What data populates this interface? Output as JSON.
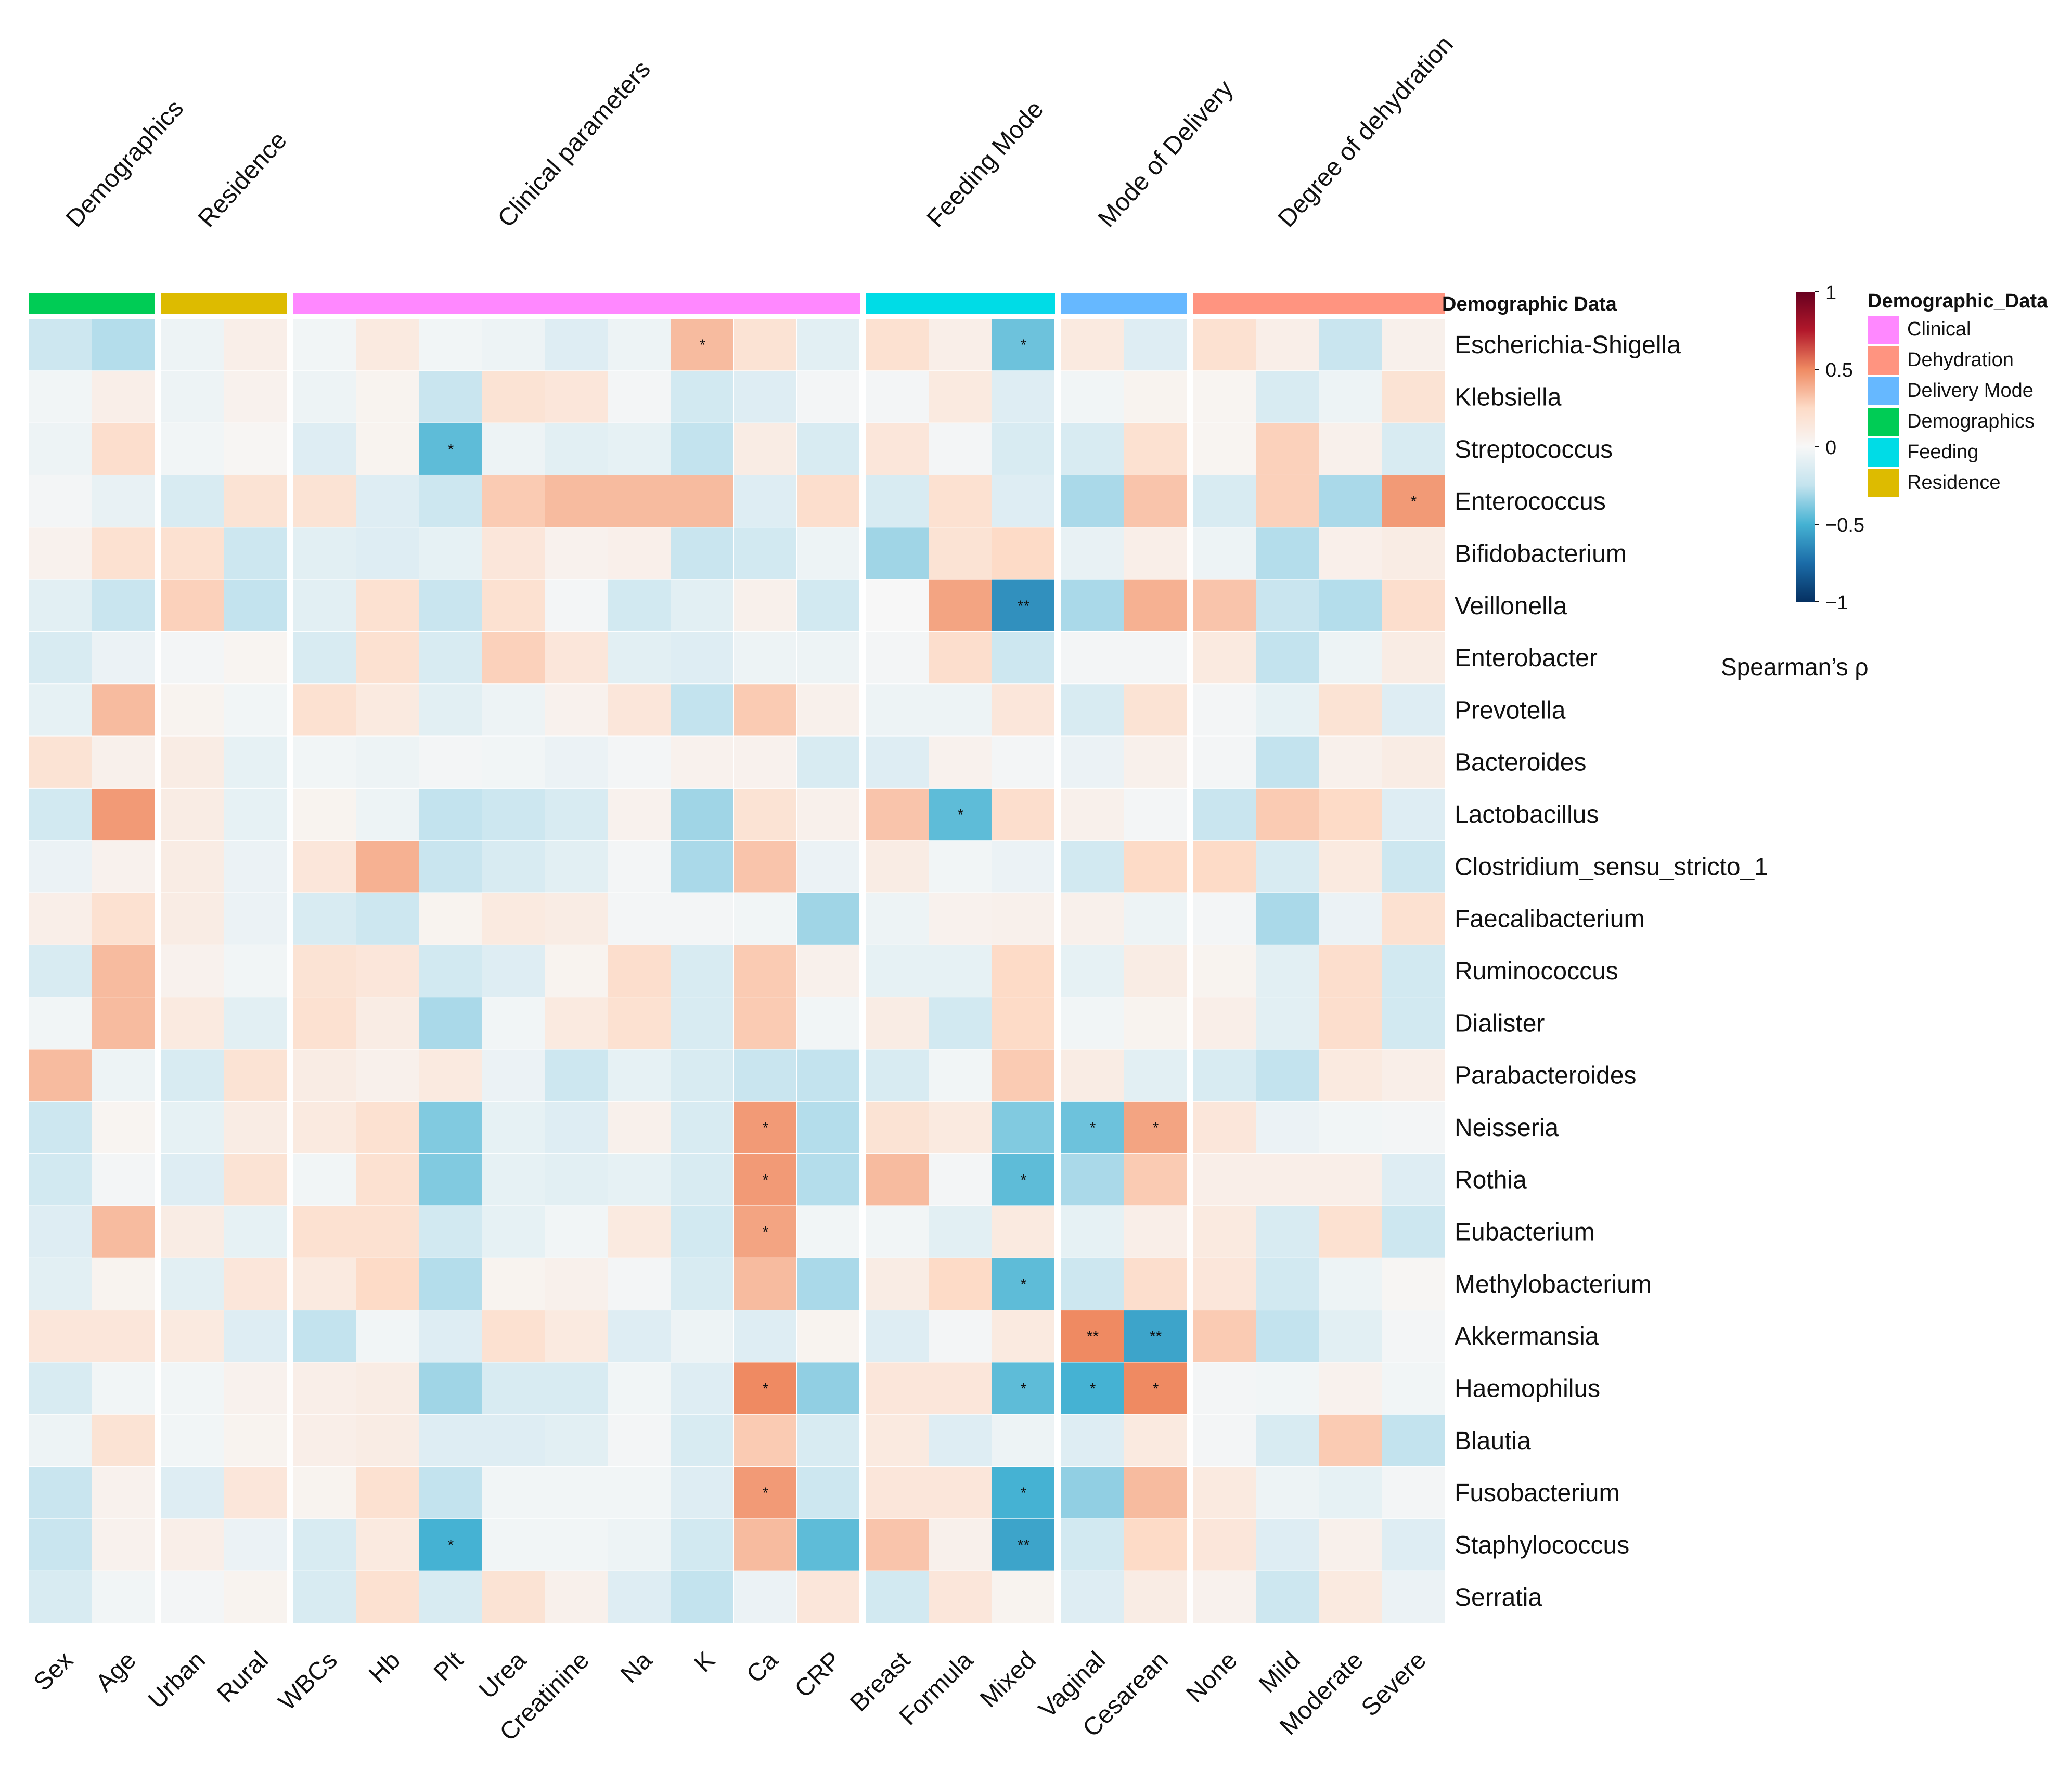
{
  "chart_data": {
    "type": "heatmap",
    "title": "",
    "groups": [
      {
        "name": "Demographics",
        "key": "Demographics",
        "columns": [
          "Sex",
          "Age"
        ]
      },
      {
        "name": "Residence",
        "key": "Residence",
        "columns": [
          "Urban",
          "Rural"
        ]
      },
      {
        "name": "Clinical parameters",
        "key": "Clinical",
        "columns": [
          "WBCs",
          "Hb",
          "Plt",
          "Urea",
          "Creatinine",
          "Na",
          "K",
          "Ca",
          "CRP"
        ]
      },
      {
        "name": "Feeding Mode",
        "key": "Feeding",
        "columns": [
          "Breast",
          "Formula",
          "Mixed"
        ]
      },
      {
        "name": "Mode of Delivery",
        "key": "Delivery Mode",
        "columns": [
          "Vaginal",
          "Cesarean"
        ]
      },
      {
        "name": "Degree of dehydration",
        "key": "Dehydration",
        "columns": [
          "None",
          "Mild",
          "Moderate",
          "Severe"
        ]
      }
    ],
    "annotation_title": "Demographic  Data",
    "legend": {
      "title": "Demographic_Data",
      "items": [
        {
          "label": "Clinical",
          "color": "#FF88FF"
        },
        {
          "label": "Dehydration",
          "color": "#FF9480"
        },
        {
          "label": "Delivery Mode",
          "color": "#66B8FF"
        },
        {
          "label": "Demographics",
          "color": "#00CC55"
        },
        {
          "label": "Feeding",
          "color": "#00DCE6"
        },
        {
          "label": "Residence",
          "color": "#DDBB00"
        }
      ]
    },
    "colorbar": {
      "label": "Spearman’s ρ",
      "ticks": [
        {
          "v": 1,
          "t": "1"
        },
        {
          "v": 0.5,
          "t": "0.5"
        },
        {
          "v": 0,
          "t": "0"
        },
        {
          "v": -0.5,
          "t": "−0.5"
        },
        {
          "v": -1,
          "t": "−1"
        }
      ],
      "range": [
        -1,
        1
      ]
    },
    "rows": [
      "Escherichia-Shigella",
      "Klebsiella",
      "Streptococcus",
      "Enterococcus",
      "Bifidobacterium",
      "Veillonella",
      "Enterobacter",
      "Prevotella",
      "Bacteroides",
      "Lactobacillus",
      "Clostridium_sensu_stricto_1",
      "Faecalibacterium",
      "Ruminococcus",
      "Dialister",
      "Parabacteroides",
      "Neisseria",
      "Rothia",
      "Eubacterium",
      "Methylobacterium",
      "Akkermansia",
      "Haemophilus",
      "Blautia",
      "Fusobacterium",
      "Staphylococcus",
      "Serratia"
    ],
    "values": [
      [
        -0.2,
        -0.28,
        -0.05,
        0.08,
        -0.03,
        0.12,
        -0.03,
        -0.05,
        -0.12,
        -0.05,
        0.35,
        0.18,
        -0.1,
        0.2,
        0.08,
        -0.42,
        0.12,
        -0.12,
        0.2,
        0.08,
        -0.22,
        0.06
      ],
      [
        -0.03,
        0.08,
        -0.05,
        0.05,
        -0.05,
        0.04,
        -0.22,
        0.18,
        0.15,
        -0.02,
        -0.18,
        -0.12,
        -0.02,
        -0.02,
        0.12,
        -0.12,
        -0.03,
        0.04,
        0.03,
        -0.15,
        -0.05,
        0.18
      ],
      [
        -0.05,
        0.22,
        -0.03,
        0.02,
        -0.12,
        0.04,
        -0.45,
        -0.05,
        -0.1,
        -0.08,
        -0.25,
        0.1,
        -0.15,
        0.15,
        -0.02,
        -0.15,
        -0.15,
        0.2,
        0.03,
        0.28,
        0.06,
        -0.15
      ],
      [
        -0.02,
        -0.07,
        -0.15,
        0.18,
        0.18,
        -0.12,
        -0.2,
        0.3,
        0.35,
        0.35,
        0.35,
        -0.12,
        0.22,
        -0.15,
        0.2,
        -0.12,
        -0.3,
        0.32,
        -0.15,
        0.28,
        -0.3,
        0.45
      ],
      [
        0.05,
        0.2,
        0.2,
        -0.2,
        -0.1,
        -0.12,
        -0.08,
        0.15,
        0.05,
        0.07,
        -0.22,
        -0.18,
        -0.05,
        -0.32,
        0.18,
        0.25,
        -0.07,
        0.08,
        -0.05,
        -0.28,
        0.07,
        0.1
      ],
      [
        -0.1,
        -0.22,
        0.28,
        -0.25,
        -0.1,
        0.2,
        -0.22,
        0.2,
        -0.02,
        -0.18,
        -0.1,
        0.06,
        -0.18,
        0.0,
        0.42,
        -0.62,
        -0.3,
        0.38,
        0.32,
        -0.22,
        -0.28,
        0.22
      ],
      [
        -0.15,
        -0.06,
        -0.02,
        0.03,
        -0.15,
        0.2,
        -0.15,
        0.28,
        0.15,
        -0.1,
        -0.12,
        -0.05,
        -0.05,
        -0.02,
        0.22,
        -0.2,
        -0.02,
        -0.02,
        0.12,
        -0.25,
        -0.05,
        0.1
      ],
      [
        -0.08,
        0.35,
        0.04,
        -0.03,
        0.2,
        0.12,
        -0.1,
        -0.05,
        0.05,
        0.15,
        -0.25,
        0.3,
        0.06,
        -0.05,
        -0.05,
        0.15,
        -0.15,
        0.18,
        -0.02,
        -0.08,
        0.18,
        -0.12
      ],
      [
        0.18,
        0.06,
        0.1,
        -0.08,
        -0.03,
        -0.05,
        -0.02,
        -0.03,
        -0.06,
        -0.02,
        0.05,
        0.05,
        -0.15,
        -0.12,
        0.05,
        -0.02,
        -0.06,
        0.06,
        -0.02,
        -0.25,
        0.06,
        0.1
      ],
      [
        -0.18,
        0.45,
        0.1,
        -0.08,
        0.04,
        -0.05,
        -0.25,
        -0.2,
        -0.15,
        0.05,
        -0.32,
        0.18,
        0.06,
        0.32,
        -0.45,
        0.22,
        0.06,
        -0.02,
        -0.22,
        0.3,
        0.25,
        -0.12
      ],
      [
        -0.06,
        0.05,
        0.1,
        -0.06,
        0.15,
        0.38,
        -0.22,
        -0.15,
        -0.1,
        -0.02,
        -0.3,
        0.32,
        -0.06,
        0.1,
        -0.03,
        -0.06,
        -0.18,
        0.25,
        0.25,
        -0.15,
        0.12,
        -0.2
      ],
      [
        0.08,
        0.2,
        0.1,
        -0.06,
        -0.15,
        -0.2,
        0.04,
        0.12,
        0.1,
        -0.02,
        -0.02,
        -0.03,
        -0.32,
        -0.05,
        0.05,
        0.06,
        0.06,
        -0.05,
        -0.02,
        -0.3,
        -0.06,
        0.2
      ],
      [
        -0.15,
        0.35,
        0.05,
        -0.03,
        0.18,
        0.15,
        -0.18,
        -0.12,
        0.04,
        0.22,
        -0.15,
        0.3,
        0.06,
        -0.08,
        -0.08,
        0.25,
        -0.08,
        0.1,
        0.04,
        -0.1,
        0.22,
        -0.18
      ],
      [
        -0.03,
        0.35,
        0.12,
        -0.1,
        0.2,
        0.1,
        -0.3,
        -0.03,
        0.12,
        0.2,
        -0.15,
        0.3,
        -0.03,
        0.1,
        -0.18,
        0.25,
        -0.03,
        0.04,
        0.08,
        -0.1,
        0.22,
        -0.18
      ],
      [
        0.35,
        -0.05,
        -0.15,
        0.18,
        0.1,
        0.06,
        0.12,
        -0.06,
        -0.2,
        -0.08,
        -0.15,
        -0.22,
        -0.25,
        -0.15,
        -0.03,
        0.3,
        0.1,
        -0.1,
        -0.15,
        -0.25,
        0.12,
        0.08
      ],
      [
        -0.2,
        0.03,
        -0.08,
        0.1,
        0.12,
        0.2,
        -0.38,
        -0.08,
        -0.12,
        0.06,
        -0.15,
        0.45,
        -0.28,
        0.18,
        0.12,
        -0.38,
        -0.42,
        0.42,
        0.15,
        -0.06,
        -0.03,
        -0.02
      ],
      [
        -0.18,
        -0.02,
        -0.12,
        0.18,
        -0.03,
        0.2,
        -0.38,
        -0.08,
        -0.1,
        -0.08,
        -0.15,
        0.45,
        -0.28,
        0.35,
        -0.02,
        -0.45,
        -0.3,
        0.3,
        0.08,
        0.08,
        0.08,
        -0.12
      ],
      [
        -0.12,
        0.35,
        0.1,
        -0.08,
        0.2,
        0.2,
        -0.18,
        -0.08,
        -0.03,
        0.12,
        -0.18,
        0.42,
        -0.03,
        -0.03,
        -0.1,
        0.12,
        -0.08,
        0.08,
        0.12,
        -0.15,
        0.2,
        -0.2
      ],
      [
        -0.1,
        0.04,
        -0.1,
        0.15,
        0.12,
        0.25,
        -0.28,
        0.04,
        0.06,
        -0.02,
        -0.15,
        0.35,
        -0.3,
        0.1,
        0.25,
        -0.45,
        -0.2,
        0.22,
        0.15,
        -0.18,
        -0.05,
        0.02
      ],
      [
        0.15,
        0.15,
        0.12,
        -0.12,
        -0.25,
        -0.03,
        -0.12,
        0.2,
        0.12,
        -0.12,
        -0.05,
        -0.12,
        0.04,
        -0.12,
        -0.02,
        0.12,
        0.5,
        -0.55,
        0.3,
        -0.25,
        -0.1,
        -0.02
      ],
      [
        -0.15,
        -0.03,
        -0.03,
        0.05,
        0.08,
        0.1,
        -0.32,
        -0.15,
        -0.15,
        -0.03,
        -0.12,
        0.5,
        -0.35,
        0.15,
        0.15,
        -0.45,
        -0.5,
        0.5,
        -0.02,
        -0.03,
        0.05,
        -0.03
      ],
      [
        -0.05,
        0.18,
        -0.03,
        0.04,
        0.08,
        0.1,
        -0.12,
        -0.12,
        -0.1,
        -0.02,
        -0.15,
        0.3,
        -0.15,
        0.12,
        -0.12,
        -0.05,
        -0.12,
        0.12,
        -0.02,
        -0.15,
        0.3,
        -0.25
      ],
      [
        -0.22,
        0.05,
        -0.12,
        0.15,
        0.04,
        0.2,
        -0.25,
        -0.03,
        -0.03,
        -0.03,
        -0.12,
        0.45,
        -0.2,
        0.15,
        0.15,
        -0.5,
        -0.35,
        0.35,
        0.12,
        -0.05,
        -0.08,
        -0.02
      ],
      [
        -0.22,
        0.05,
        0.08,
        -0.06,
        -0.15,
        0.12,
        -0.5,
        -0.03,
        -0.03,
        -0.05,
        -0.18,
        0.35,
        -0.45,
        0.32,
        0.06,
        -0.55,
        -0.18,
        0.25,
        0.15,
        -0.12,
        0.06,
        -0.12
      ],
      [
        -0.15,
        -0.03,
        -0.02,
        0.04,
        -0.15,
        0.2,
        -0.15,
        0.18,
        0.06,
        -0.12,
        -0.25,
        -0.06,
        0.15,
        -0.18,
        0.15,
        0.04,
        -0.12,
        0.1,
        0.05,
        -0.2,
        0.12,
        -0.06
      ]
    ],
    "significance": [
      {
        "row": 0,
        "col": 10,
        "mark": "*"
      },
      {
        "row": 0,
        "col": 15,
        "mark": "*"
      },
      {
        "row": 2,
        "col": 6,
        "mark": "*"
      },
      {
        "row": 3,
        "col": 21,
        "mark": "*"
      },
      {
        "row": 5,
        "col": 15,
        "mark": "**"
      },
      {
        "row": 9,
        "col": 14,
        "mark": "*"
      },
      {
        "row": 15,
        "col": 11,
        "mark": "*"
      },
      {
        "row": 15,
        "col": 16,
        "mark": "*"
      },
      {
        "row": 15,
        "col": 17,
        "mark": "*"
      },
      {
        "row": 16,
        "col": 11,
        "mark": "*"
      },
      {
        "row": 16,
        "col": 15,
        "mark": "*"
      },
      {
        "row": 17,
        "col": 11,
        "mark": "*"
      },
      {
        "row": 18,
        "col": 15,
        "mark": "*"
      },
      {
        "row": 19,
        "col": 16,
        "mark": "**"
      },
      {
        "row": 19,
        "col": 17,
        "mark": "**"
      },
      {
        "row": 20,
        "col": 11,
        "mark": "*"
      },
      {
        "row": 20,
        "col": 15,
        "mark": "*"
      },
      {
        "row": 20,
        "col": 16,
        "mark": "*"
      },
      {
        "row": 20,
        "col": 17,
        "mark": "*"
      },
      {
        "row": 22,
        "col": 11,
        "mark": "*"
      },
      {
        "row": 22,
        "col": 15,
        "mark": "*"
      },
      {
        "row": 23,
        "col": 6,
        "mark": "*"
      },
      {
        "row": 23,
        "col": 15,
        "mark": "**"
      }
    ]
  }
}
